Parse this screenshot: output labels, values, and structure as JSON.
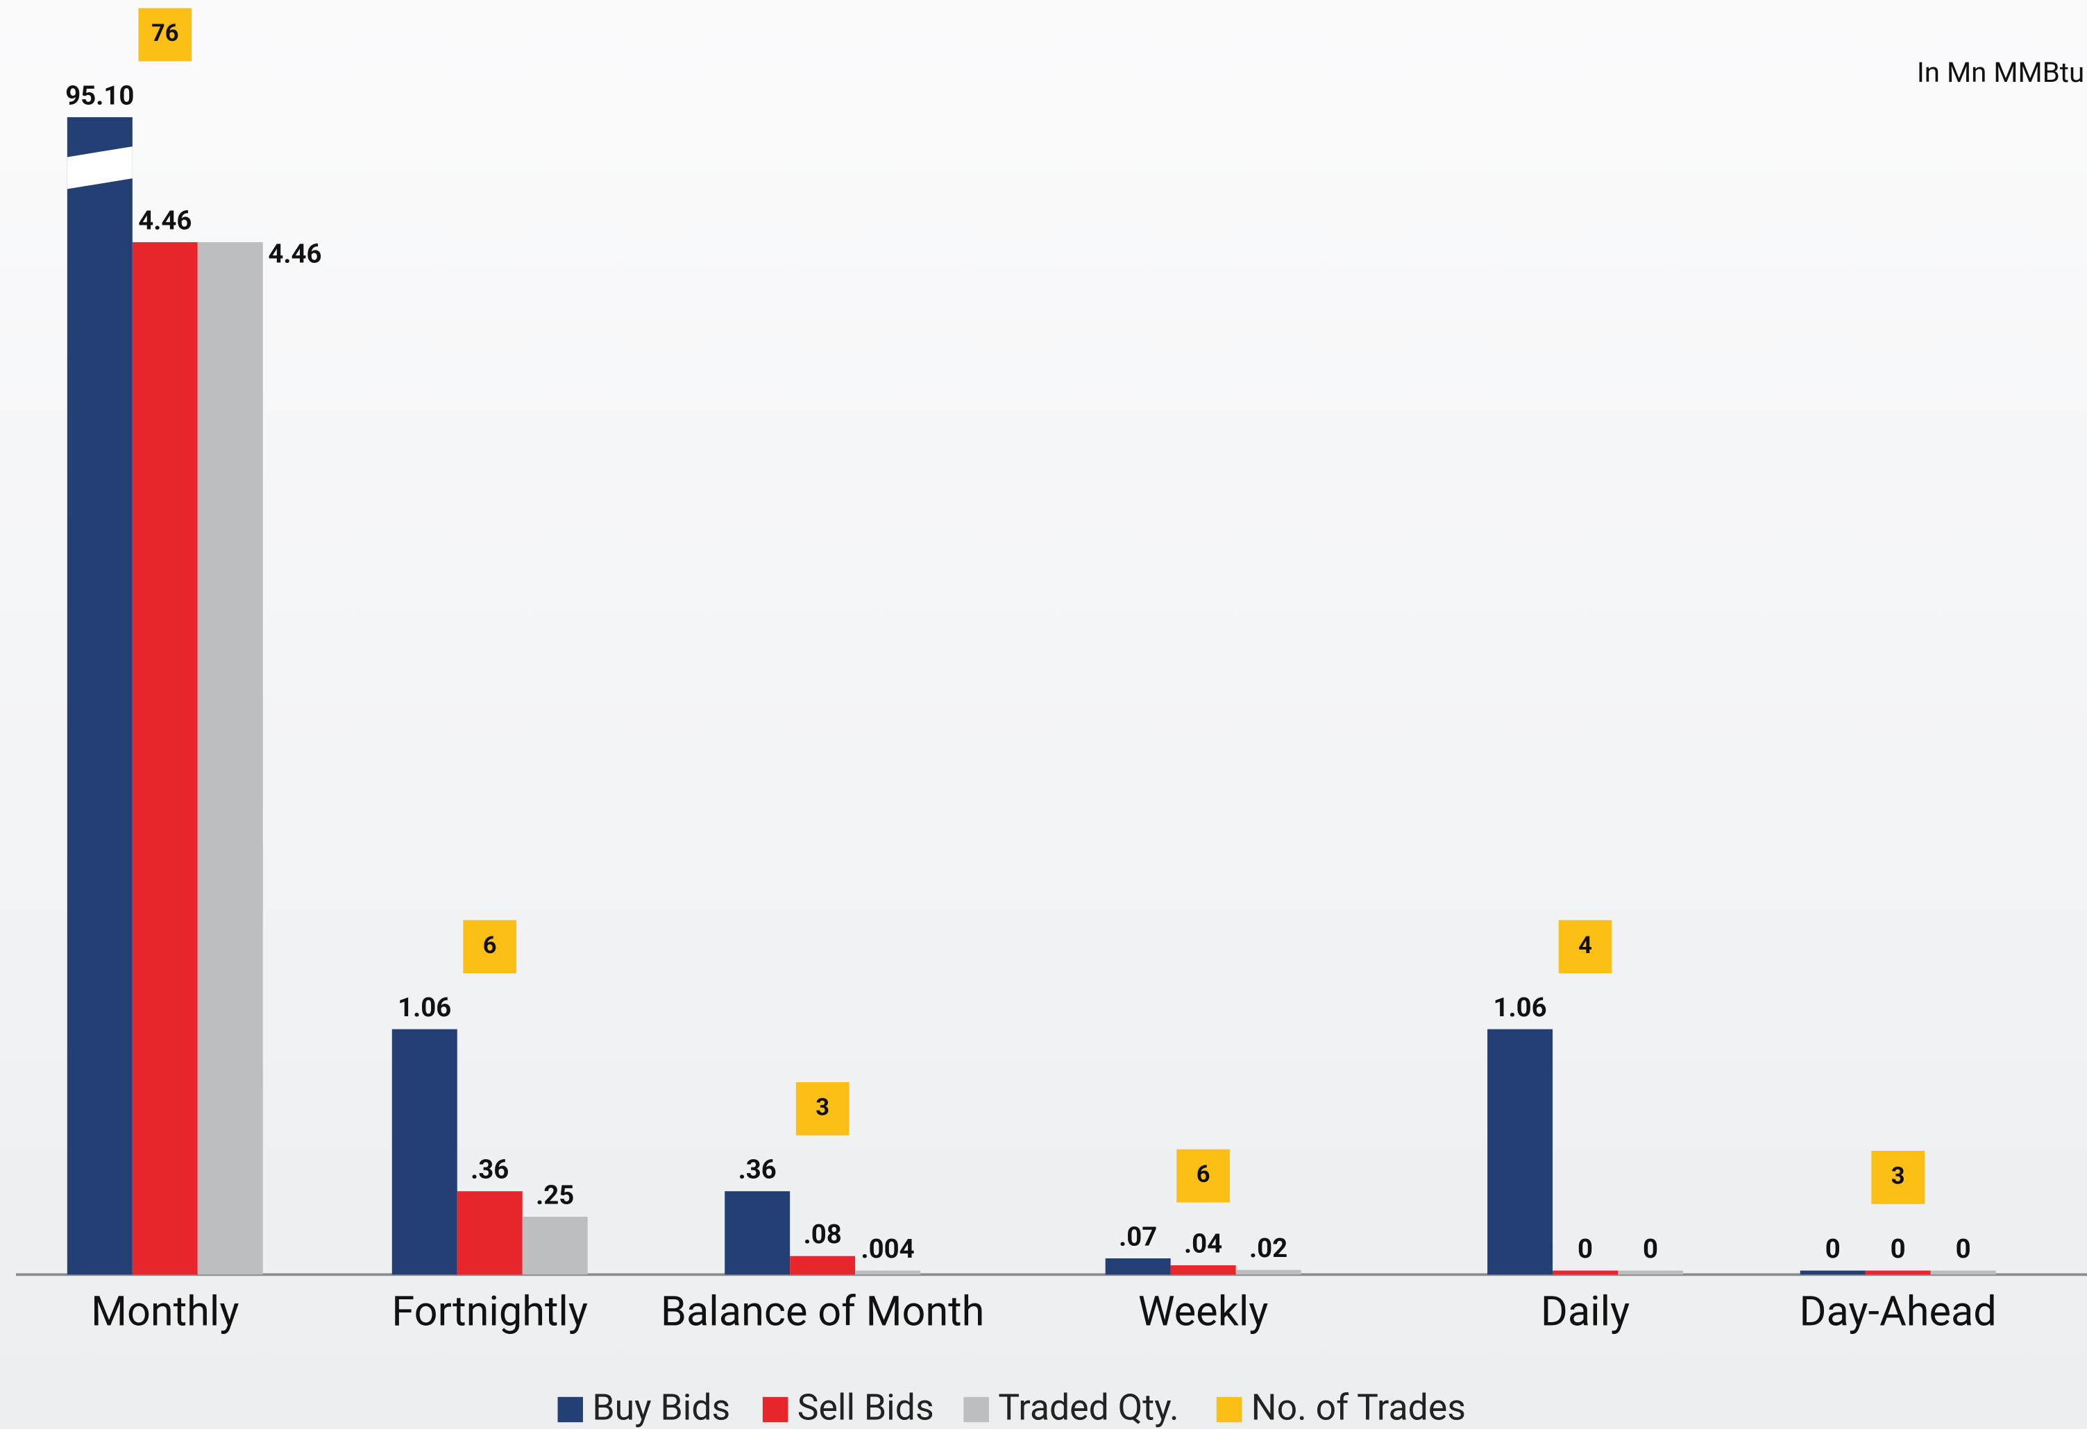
{
  "chart_data": {
    "type": "bar",
    "unit_label": "In Mn MMBtu",
    "categories": [
      "Monthly",
      "Fortnightly",
      "Balance of Month",
      "Weekly",
      "Daily",
      "Day-Ahead"
    ],
    "ylim": [
      0,
      5
    ],
    "axis_break": true,
    "series": [
      {
        "name": "Buy Bids",
        "color": "#233f74",
        "values": [
          95.1,
          1.06,
          0.36,
          0.07,
          1.06,
          0
        ],
        "value_labels": [
          "95.10",
          "1.06",
          ".36",
          ".07",
          "1.06",
          "0"
        ]
      },
      {
        "name": "Sell Bids",
        "color": "#e8262c",
        "values": [
          4.46,
          0.36,
          0.08,
          0.04,
          0,
          0
        ],
        "value_labels": [
          "4.46",
          ".36",
          ".08",
          ".04",
          "0",
          "0"
        ]
      },
      {
        "name": "Traded Qty.",
        "color": "#bdbec0",
        "values": [
          4.46,
          0.25,
          0.004,
          0.02,
          0,
          0
        ],
        "value_labels": [
          "4.46",
          ".25",
          ".004",
          ".02",
          "0",
          "0"
        ]
      },
      {
        "name": "No. of Trades",
        "color": "#fbbf15",
        "values": [
          76,
          6,
          3,
          6,
          4,
          3
        ],
        "label_only": true
      }
    ]
  }
}
